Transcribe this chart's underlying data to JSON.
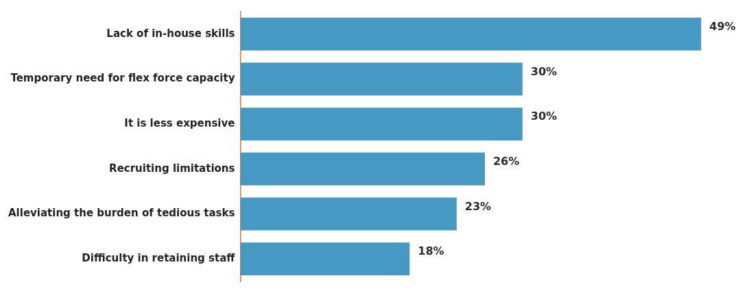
{
  "chart_data": {
    "type": "bar",
    "orientation": "horizontal",
    "categories": [
      "Lack of in-house skills",
      "Temporary need for flex force capacity",
      "It is less expensive",
      "Recruiting limitations",
      "Alleviating the burden of tedious tasks",
      "Difficulty in retaining staff"
    ],
    "values": [
      49,
      30,
      30,
      26,
      23,
      18
    ],
    "value_labels": [
      "49%",
      "30%",
      "30%",
      "26%",
      "23%",
      "18%"
    ],
    "color": "#4599c3",
    "grid": false,
    "legend": false,
    "tick_labels": "y"
  }
}
